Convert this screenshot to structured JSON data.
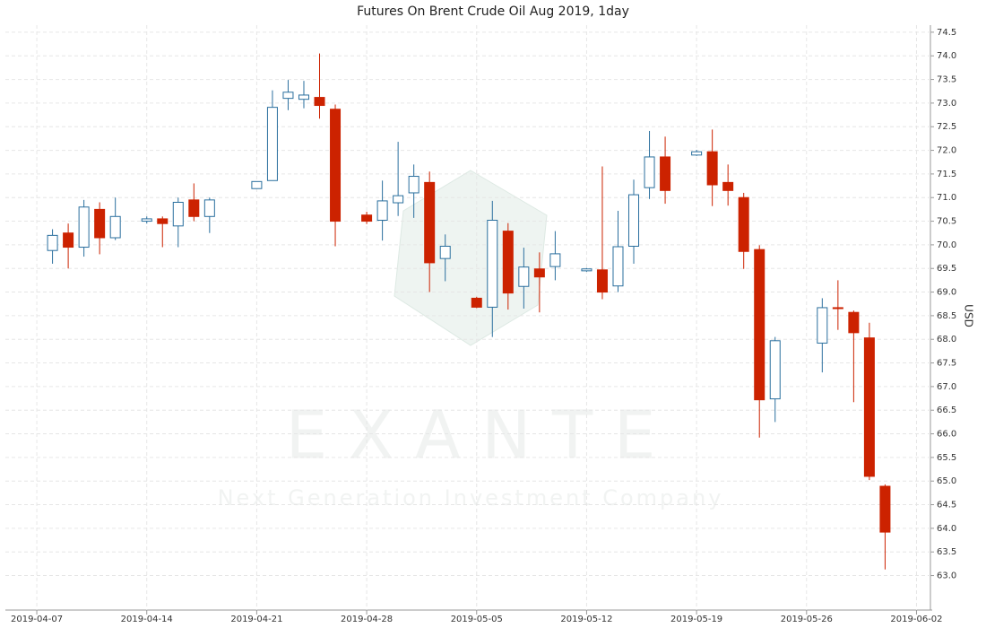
{
  "chart_data": {
    "type": "candlestick",
    "title": "Futures On Brent Crude Oil Aug 2019, 1day",
    "y_label": "USD",
    "watermark": "E X A N T E",
    "watermark_sub": "Next Generation Investment Company",
    "x": [
      "2019-04-08",
      "2019-04-09",
      "2019-04-10",
      "2019-04-11",
      "2019-04-12",
      "2019-04-14",
      "2019-04-15",
      "2019-04-16",
      "2019-04-17",
      "2019-04-18",
      "2019-04-21",
      "2019-04-22",
      "2019-04-23",
      "2019-04-24",
      "2019-04-25",
      "2019-04-26",
      "2019-04-28",
      "2019-04-29",
      "2019-04-30",
      "2019-05-01",
      "2019-05-02",
      "2019-05-03",
      "2019-05-05",
      "2019-05-06",
      "2019-05-07",
      "2019-05-08",
      "2019-05-09",
      "2019-05-10",
      "2019-05-12",
      "2019-05-13",
      "2019-05-14",
      "2019-05-15",
      "2019-05-16",
      "2019-05-17",
      "2019-05-19",
      "2019-05-20",
      "2019-05-21",
      "2019-05-22",
      "2019-05-23",
      "2019-05-24",
      "2019-05-27",
      "2019-05-28",
      "2019-05-29",
      "2019-05-30",
      "2019-05-31"
    ],
    "open": [
      69.88,
      70.25,
      69.95,
      70.75,
      70.15,
      70.5,
      70.55,
      70.4,
      70.95,
      70.6,
      71.19,
      71.36,
      73.1,
      73.08,
      73.12,
      72.87,
      70.63,
      70.52,
      70.89,
      71.1,
      71.32,
      69.71,
      68.87,
      68.68,
      70.29,
      69.12,
      69.49,
      69.54,
      69.45,
      69.47,
      69.13,
      69.97,
      71.21,
      71.86,
      71.9,
      71.97,
      71.32,
      71.0,
      69.9,
      66.74,
      67.92,
      68.67,
      68.57,
      68.03,
      64.89
    ],
    "high": [
      70.33,
      70.45,
      70.95,
      70.9,
      71.0,
      70.6,
      70.6,
      71.0,
      71.3,
      71.0,
      71.34,
      73.27,
      73.49,
      73.47,
      74.05,
      72.97,
      70.7,
      71.36,
      72.18,
      71.7,
      71.55,
      70.22,
      68.9,
      70.93,
      70.46,
      69.94,
      69.84,
      70.29,
      69.51,
      71.66,
      70.72,
      71.38,
      72.41,
      72.29,
      72.01,
      72.44,
      71.7,
      71.1,
      69.99,
      68.05,
      68.87,
      69.25,
      68.61,
      68.35,
      64.93
    ],
    "low": [
      69.6,
      69.5,
      69.75,
      69.8,
      70.1,
      70.45,
      69.95,
      69.95,
      70.5,
      70.25,
      71.19,
      71.36,
      72.85,
      72.89,
      72.67,
      69.97,
      70.44,
      70.09,
      70.61,
      70.57,
      69.0,
      69.23,
      68.66,
      68.05,
      68.63,
      68.65,
      68.57,
      69.25,
      69.43,
      68.85,
      69.0,
      69.6,
      70.97,
      70.87,
      71.88,
      70.82,
      70.83,
      69.49,
      65.92,
      66.25,
      67.3,
      68.2,
      66.67,
      65.02,
      63.13
    ],
    "close": [
      70.2,
      69.95,
      70.8,
      70.15,
      70.6,
      70.55,
      70.45,
      70.9,
      70.6,
      70.95,
      71.34,
      72.91,
      73.23,
      73.17,
      72.95,
      70.5,
      70.5,
      70.93,
      71.04,
      71.45,
      69.62,
      69.97,
      68.68,
      70.52,
      68.98,
      69.53,
      69.32,
      69.81,
      69.49,
      69.0,
      69.96,
      71.06,
      71.86,
      71.15,
      71.97,
      71.27,
      71.15,
      69.86,
      66.72,
      67.97,
      68.67,
      68.65,
      68.14,
      65.1,
      63.92
    ],
    "up_color": "#2a6f9e",
    "down_color": "#cc2200",
    "xlim": [
      "2019-04-05",
      "2019-06-03"
    ],
    "xticks": [
      "2019-04-07",
      "2019-04-14",
      "2019-04-21",
      "2019-04-28",
      "2019-05-05",
      "2019-05-12",
      "2019-05-19",
      "2019-05-26",
      "2019-06-02"
    ],
    "ylim": [
      62.27,
      74.65
    ],
    "yticks": [
      {
        "value": 63.0,
        "label": "63.0"
      },
      63.5,
      {
        "value": 64.0,
        "label": "64.0"
      },
      64.5,
      {
        "value": 65.0,
        "label": "65.0"
      },
      65.5,
      {
        "value": 66.0,
        "label": "66.0"
      },
      66.5,
      {
        "value": 67.0,
        "label": "67.0"
      },
      67.5,
      {
        "value": 68.0,
        "label": "68.0"
      },
      68.5,
      {
        "value": 69.0,
        "label": "69.0"
      },
      69.5,
      {
        "value": 70.0,
        "label": "70.0"
      },
      70.5,
      {
        "value": 71.0,
        "label": "71.0"
      },
      71.5,
      {
        "value": 72.0,
        "label": "72.0"
      },
      72.5,
      {
        "value": 73.0,
        "label": "73.0"
      },
      73.5,
      {
        "value": 74.0,
        "label": "74.0"
      },
      74.5
    ],
    "grid": true
  }
}
